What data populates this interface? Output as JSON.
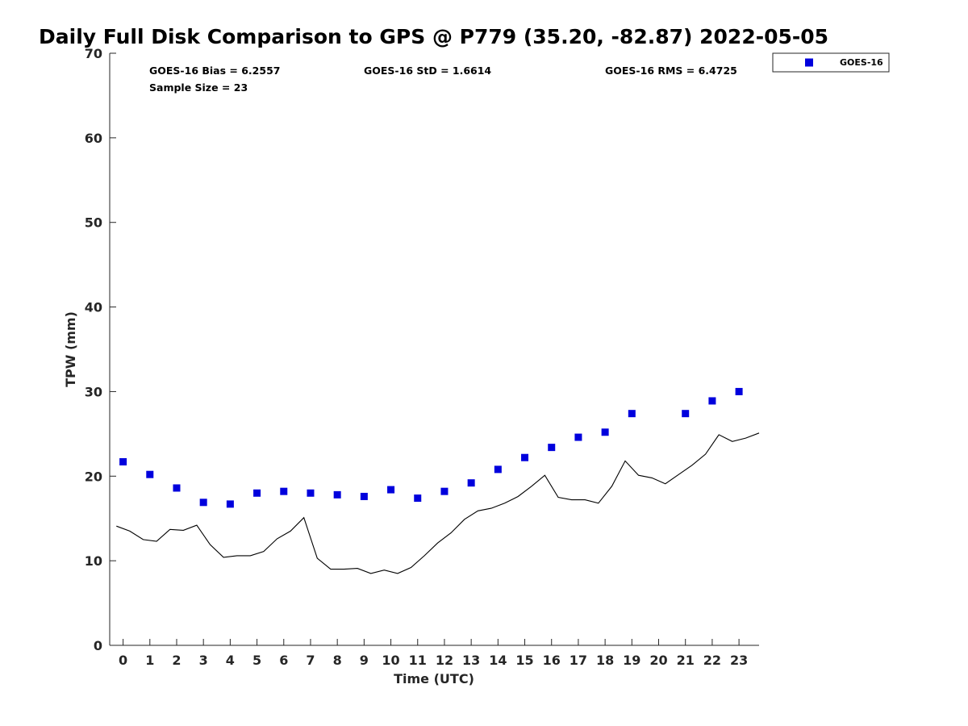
{
  "chart_data": {
    "type": "scatter",
    "title": "Daily Full Disk Comparison to GPS @ P779 (35.20, -82.87) 2022-05-05",
    "xlabel": "Time (UTC)",
    "ylabel": "TPW (mm)",
    "xlim": [
      -0.5,
      23.75
    ],
    "ylim": [
      0,
      70
    ],
    "xticks": [
      0,
      1,
      2,
      3,
      4,
      5,
      6,
      7,
      8,
      9,
      10,
      11,
      12,
      13,
      14,
      15,
      16,
      17,
      18,
      19,
      20,
      21,
      22,
      23
    ],
    "yticks": [
      0,
      10,
      20,
      30,
      40,
      50,
      60,
      70
    ],
    "grid": false,
    "legend_position": "top-right",
    "stats": {
      "bias": "GOES-16 Bias = 6.2557",
      "std": "GOES-16 StD = 1.6614",
      "rms": "GOES-16 RMS = 6.4725",
      "sample": "Sample Size = 23"
    },
    "series": [
      {
        "name": "GOES-16",
        "type": "scatter",
        "marker": "square",
        "color": "#0000dd",
        "x": [
          0,
          1,
          2,
          3,
          4,
          5,
          6,
          7,
          8,
          9,
          10,
          11,
          12,
          13,
          14,
          15,
          16,
          17,
          18,
          19,
          21,
          22,
          23
        ],
        "y": [
          21.7,
          20.2,
          18.6,
          16.9,
          16.7,
          18.0,
          18.2,
          18.0,
          17.8,
          17.6,
          18.4,
          17.4,
          18.2,
          19.2,
          20.8,
          22.2,
          23.4,
          24.6,
          25.2,
          27.4,
          27.4,
          28.9,
          30.0
        ]
      },
      {
        "type": "line",
        "color": "#000000",
        "x": [
          -0.25,
          0.25,
          0.75,
          1.25,
          1.75,
          2.25,
          2.75,
          3.25,
          3.75,
          4.25,
          4.75,
          5.25,
          5.75,
          6.25,
          6.75,
          7.25,
          7.75,
          8.25,
          8.75,
          9.25,
          9.75,
          10.25,
          10.75,
          11.25,
          11.75,
          12.25,
          12.75,
          13.25,
          13.75,
          14.25,
          14.75,
          15.25,
          15.75,
          16.25,
          16.75,
          17.25,
          17.75,
          18.25,
          18.75,
          19.25,
          19.75,
          20.25,
          20.75,
          21.25,
          21.75,
          22.25,
          22.75,
          23.25,
          23.75
        ],
        "y": [
          14.1,
          13.5,
          12.5,
          12.3,
          13.7,
          13.6,
          14.2,
          11.9,
          10.4,
          10.6,
          10.6,
          11.1,
          12.6,
          13.5,
          15.1,
          10.3,
          9.0,
          9.0,
          9.1,
          8.5,
          8.9,
          8.5,
          9.2,
          10.6,
          12.1,
          13.3,
          14.9,
          15.9,
          16.2,
          16.8,
          17.6,
          18.8,
          20.1,
          17.5,
          17.2,
          17.2,
          16.8,
          18.8,
          21.8,
          20.1,
          19.8,
          19.1,
          20.2,
          21.3,
          22.6,
          24.9,
          24.1,
          24.5,
          25.1
        ]
      }
    ]
  }
}
